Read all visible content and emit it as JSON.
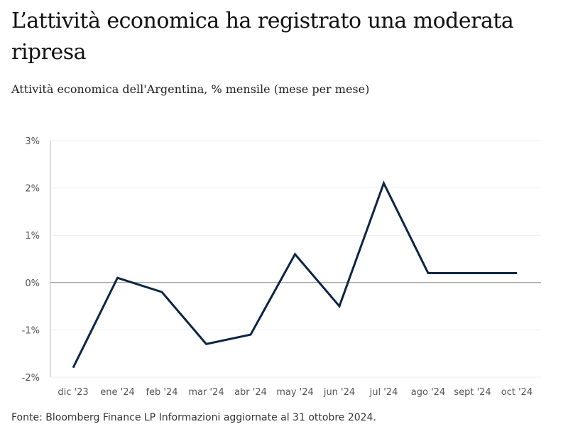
{
  "title": "L’attività economica ha registrato una moderata ripresa",
  "subtitle": "Attività economica dell'Argentina, % mensile (mese per mese)",
  "footer": "Fonte: Bloomberg Finance LP Informazioni aggiornate al 31 ottobre 2024.",
  "chart_data": {
    "type": "line",
    "categories": [
      "dic '23",
      "ene '24",
      "feb '24",
      "mar '24",
      "abr '24",
      "may '24",
      "jun '24",
      "jul '24",
      "ago '24",
      "sept '24",
      "oct '24"
    ],
    "values": [
      -1.8,
      0.1,
      -0.2,
      -1.3,
      -1.1,
      0.6,
      -0.5,
      2.1,
      0.2,
      0.2,
      0.2
    ],
    "yticks": [
      3,
      2,
      1,
      0,
      -1,
      -2
    ],
    "ytick_labels": [
      "3%",
      "2%",
      "1%",
      "0%",
      "-1%",
      "-2%"
    ],
    "ylim": [
      -2,
      3
    ],
    "grid": true,
    "line_color": "#0b2545"
  }
}
